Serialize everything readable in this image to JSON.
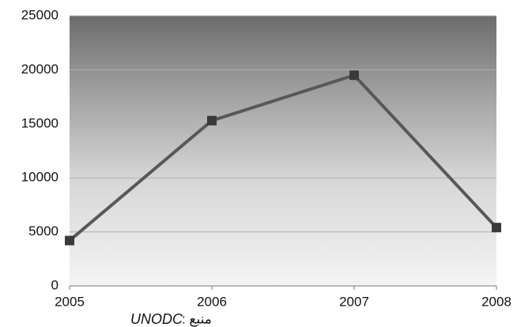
{
  "chart_data": {
    "type": "line",
    "x": [
      2005,
      2006,
      2007,
      2008
    ],
    "series": [
      {
        "color": "#585858",
        "values": [
          4200,
          15300,
          19500,
          5400
        ]
      }
    ],
    "xlim": [
      2005,
      2008
    ],
    "xticks": [
      2005,
      2006,
      2007,
      2008
    ],
    "ylim": [
      0,
      25000
    ],
    "yticks": [
      0,
      5000,
      10000,
      15000,
      20000,
      25000
    ],
    "grid": true,
    "source": {
      "label": "منبع :",
      "name": "UNODC"
    }
  }
}
